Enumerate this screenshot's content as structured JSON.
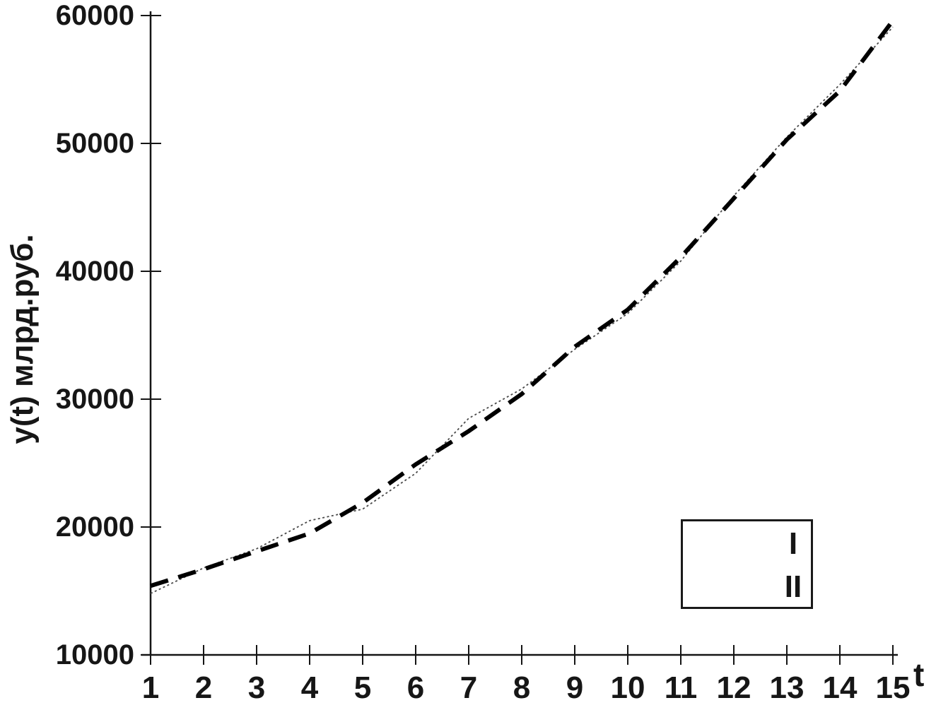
{
  "chart_data": {
    "type": "line",
    "title": "",
    "xlabel": "t",
    "ylabel": "y(t)  млрд.руб.",
    "xlim": [
      1,
      15
    ],
    "ylim": [
      10000,
      60000
    ],
    "grid": false,
    "legend_position": "bottom-right",
    "x_ticks": [
      1,
      2,
      3,
      4,
      5,
      6,
      7,
      8,
      9,
      10,
      11,
      12,
      13,
      14,
      15
    ],
    "y_ticks": [
      10000,
      20000,
      30000,
      40000,
      50000,
      60000
    ],
    "x": [
      1,
      2,
      3,
      4,
      5,
      6,
      7,
      8,
      9,
      10,
      11,
      12,
      13,
      14,
      15
    ],
    "series": [
      {
        "name": "I",
        "style": "thin-dotted",
        "color": "#4a4a4a",
        "legend_color": "#9a9a9a",
        "values": [
          14800,
          16800,
          18300,
          20500,
          21400,
          24200,
          28500,
          30800,
          33900,
          36700,
          40800,
          45900,
          50500,
          54600,
          59100
        ]
      },
      {
        "name": "II",
        "style": "thick-dashed",
        "color": "#000000",
        "legend_color": "#000000",
        "values": [
          15400,
          16700,
          18100,
          19500,
          21900,
          24900,
          27500,
          30400,
          34100,
          37000,
          41100,
          45700,
          50300,
          54100,
          59600
        ]
      }
    ]
  },
  "axis": {
    "y_title": "y(t)  млрд.руб.",
    "x_title": "t"
  },
  "legend": {
    "items": [
      {
        "label": "I"
      },
      {
        "label": "II"
      }
    ]
  }
}
